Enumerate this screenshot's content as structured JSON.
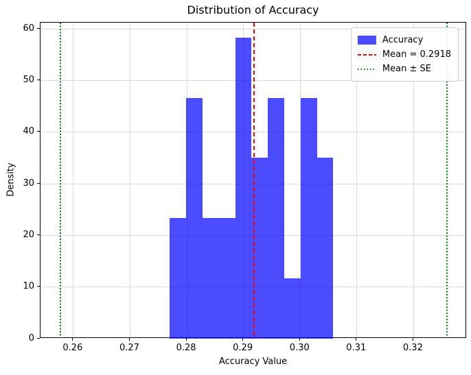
{
  "title": "Distribution of Accuracy",
  "chart_data": {
    "type": "bar",
    "subtype": "histogram",
    "title": "Distribution of Accuracy",
    "xlabel": "Accuracy Value",
    "ylabel": "Density",
    "xlim": [
      0.2542,
      0.3294
    ],
    "ylim": [
      0,
      61.2
    ],
    "grid": true,
    "xtick_values": [
      0.26,
      0.27,
      0.28,
      0.29,
      0.3,
      0.31,
      0.32
    ],
    "xtick_labels": [
      "0.26",
      "0.27",
      "0.28",
      "0.29",
      "0.30",
      "0.31",
      "0.32"
    ],
    "ytick_values": [
      0,
      10,
      20,
      30,
      40,
      50,
      60
    ],
    "ytick_labels": [
      "0",
      "10",
      "20",
      "30",
      "40",
      "50",
      "60"
    ],
    "bin_edges": [
      0.277,
      0.2799,
      0.2828,
      0.2857,
      0.2886,
      0.2914,
      0.2943,
      0.2972,
      0.3001,
      0.303,
      0.3058
    ],
    "densities": [
      23.3,
      46.6,
      23.3,
      23.3,
      58.3,
      35.0,
      46.6,
      11.7,
      46.6,
      35.0
    ],
    "mean": 0.2918,
    "mean_minus_se": 0.2577,
    "mean_plus_se": 0.3259,
    "legend_position": "top-right",
    "legend_entries": [
      {
        "label": "Accuracy",
        "swatch": "patch",
        "color": "#0000FF"
      },
      {
        "label": "Mean = 0.2918",
        "swatch": "dashed-line",
        "color": "#FF0000"
      },
      {
        "label": "Mean ± SE",
        "swatch": "dotted-line",
        "color": "#008000"
      }
    ],
    "colors": {
      "bar_fill": "#0000FF",
      "bar_alpha": 0.7,
      "mean_line": "#FF0000",
      "se_line": "#008000",
      "grid": "#DBDBDB",
      "spine": "#000000"
    }
  }
}
